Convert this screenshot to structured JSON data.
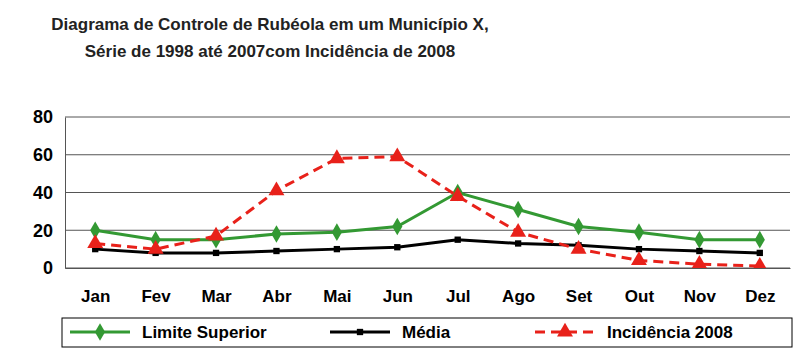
{
  "chart_data": {
    "type": "line",
    "title": "Diagrama de Controle de Rubéola em um Município X,\nSérie de 1998 até 2007com Incidência de 2008",
    "categories": [
      "Jan",
      "Fev",
      "Mar",
      "Abr",
      "Mai",
      "Jun",
      "Jul",
      "Ago",
      "Set",
      "Out",
      "Nov",
      "Dez"
    ],
    "series": [
      {
        "name": "Limite Superior",
        "color": "#339933",
        "marker": "diamond",
        "line_style": "solid",
        "values": [
          20,
          15,
          15,
          18,
          19,
          22,
          40,
          31,
          22,
          19,
          15,
          15
        ]
      },
      {
        "name": "Média",
        "color": "#000000",
        "marker": "square",
        "line_style": "solid",
        "values": [
          10,
          8,
          8,
          9,
          10,
          11,
          15,
          13,
          12,
          10,
          9,
          8
        ]
      },
      {
        "name": "Incidência 2008",
        "color": "#e8211a",
        "marker": "triangle",
        "line_style": "dashed",
        "values": [
          13,
          10,
          17,
          41,
          58,
          59,
          38,
          19,
          10,
          4,
          2,
          1
        ]
      }
    ],
    "ylim": [
      0,
      80
    ],
    "yticks": [
      0,
      20,
      40,
      60,
      80
    ],
    "grid": true,
    "legend": "bottom"
  }
}
